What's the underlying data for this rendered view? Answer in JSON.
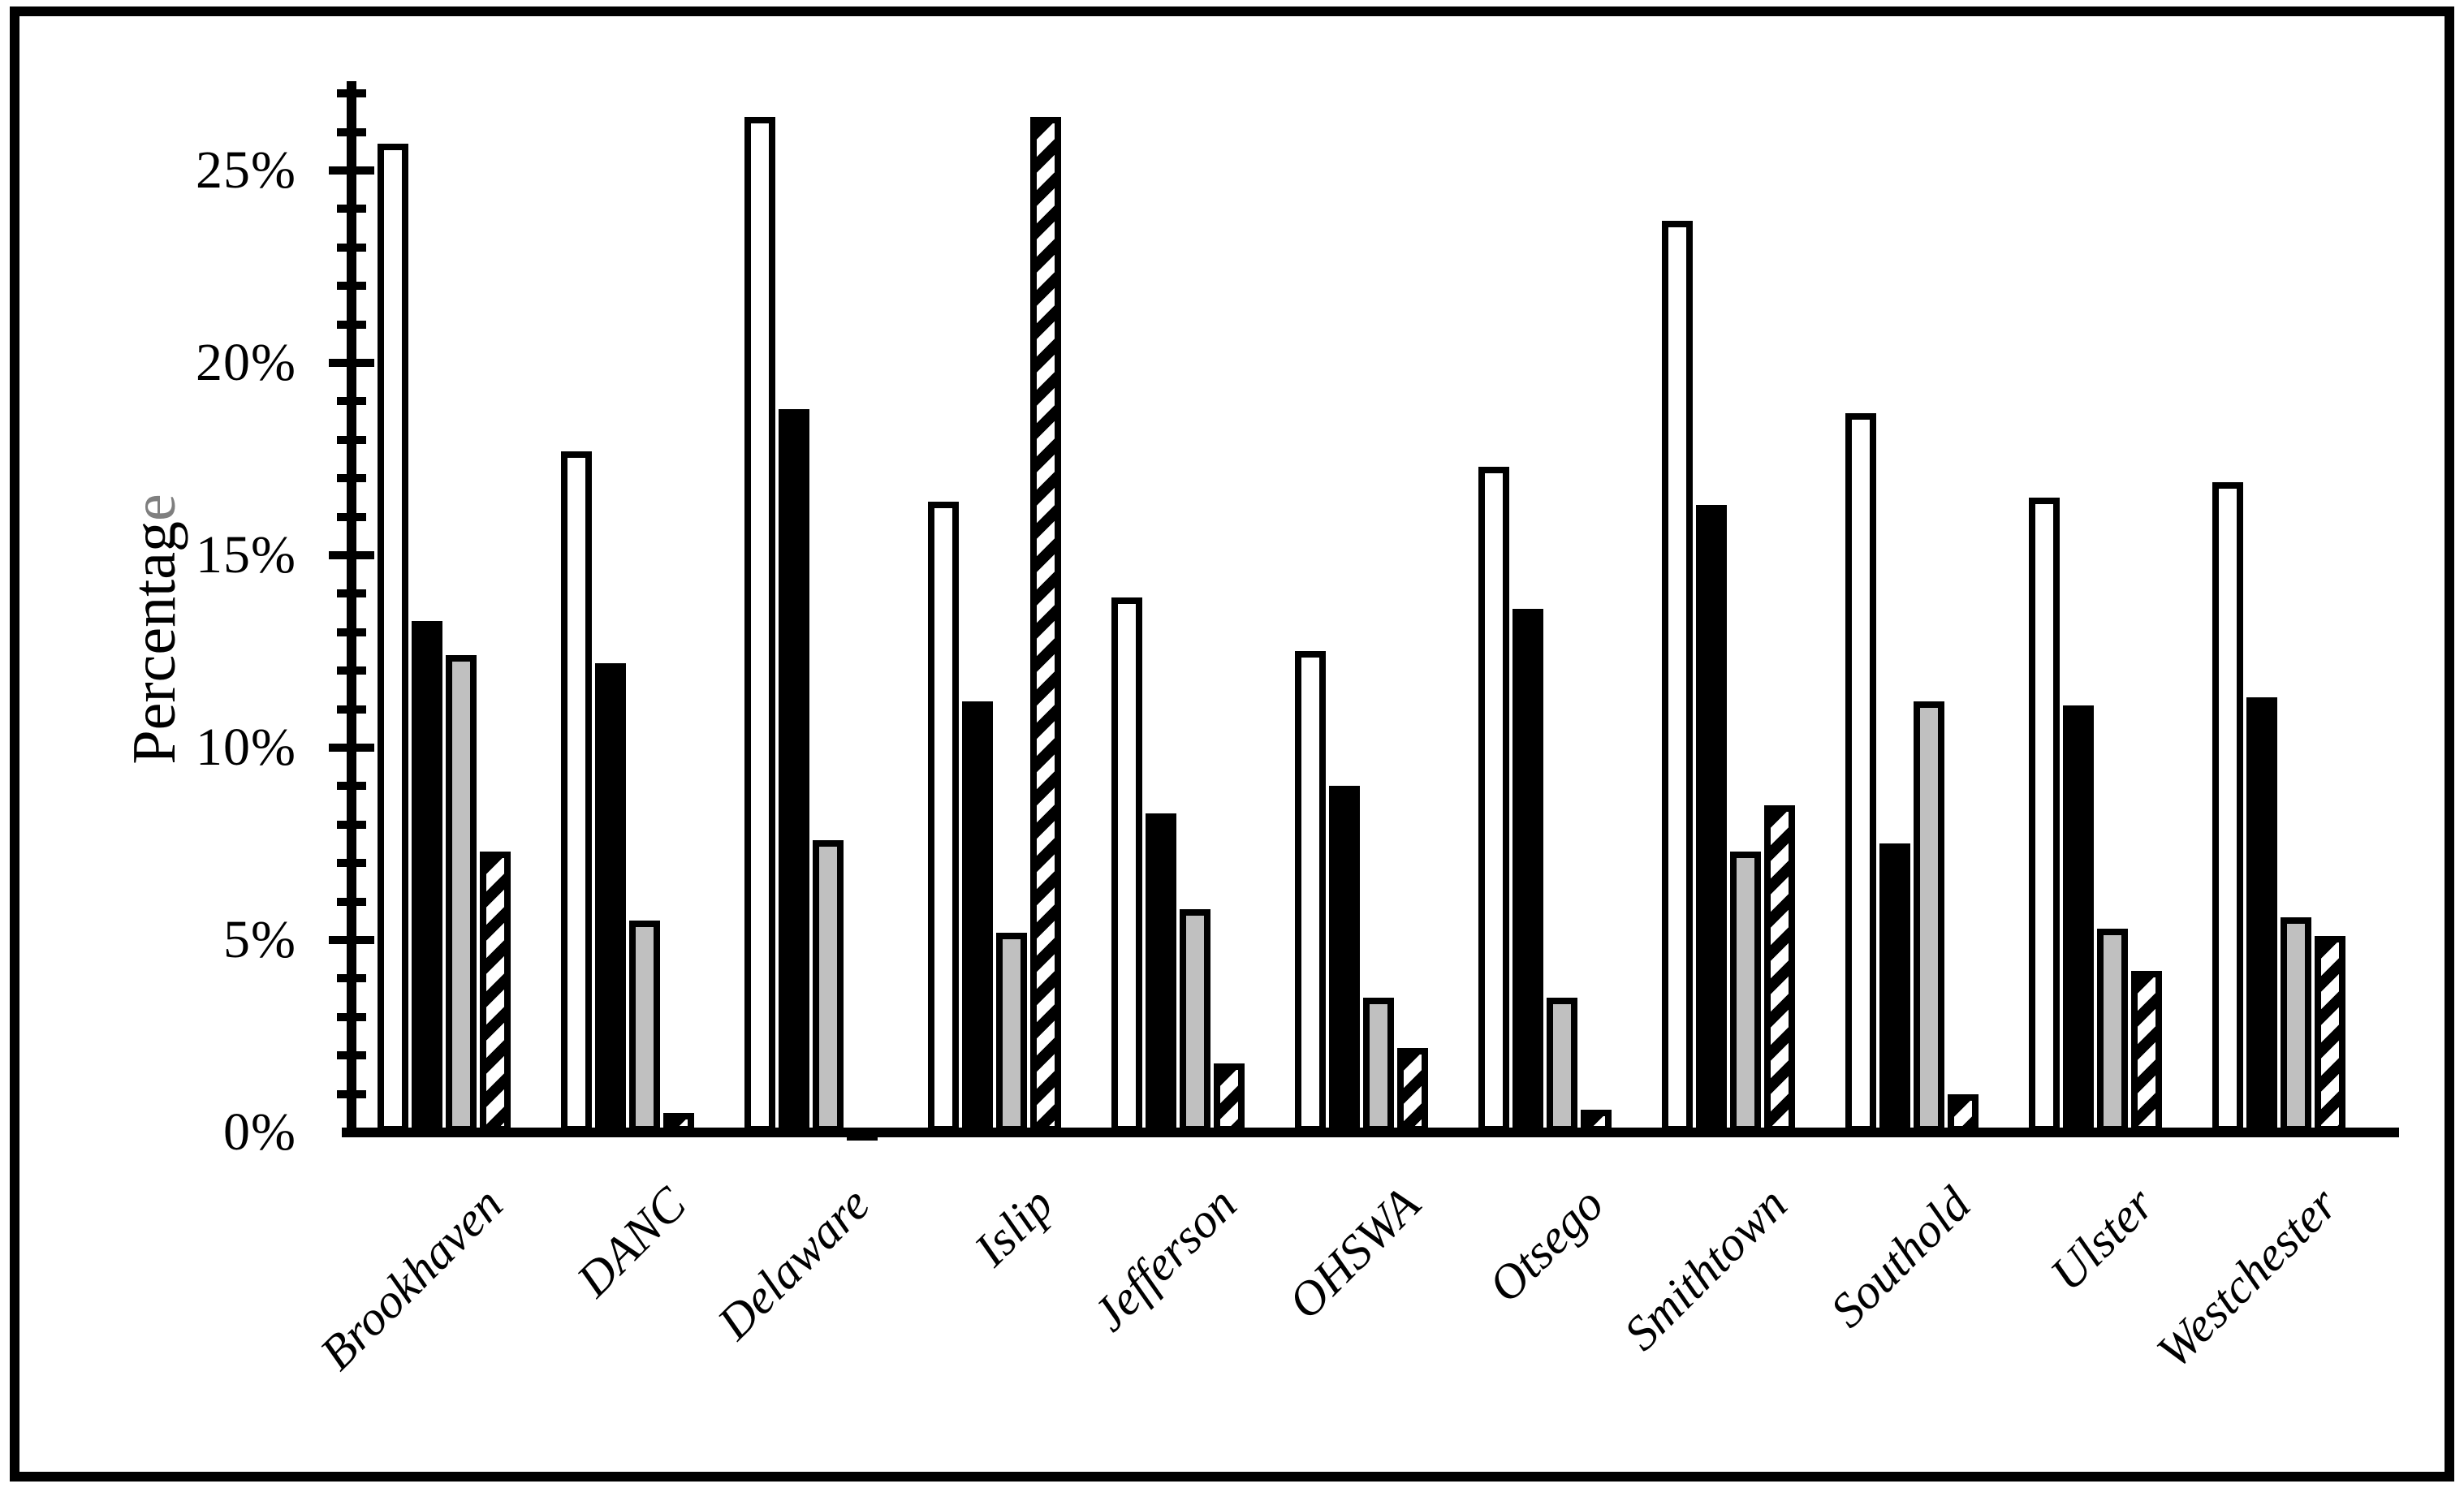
{
  "figure": {
    "y_axis": {
      "title": "Percentage",
      "tick_labels": [
        "25%",
        "20%",
        "15%",
        "10%",
        "5%",
        "0%"
      ],
      "major_tick_values": [
        25,
        20,
        15,
        10,
        5,
        0
      ],
      "minor_tick_step_percent": 1,
      "axis_max_percent": 27
    },
    "chart_data": {
      "type": "bar",
      "title": "",
      "xlabel": "",
      "ylabel": "Percentage",
      "ylim": [
        0,
        27
      ],
      "grid": false,
      "legend_position": "none",
      "categories": [
        "Brookhaven",
        "DANC",
        "Delaware",
        "Islip",
        "Jefferson",
        "OHSWA",
        "Otsego",
        "Smithtown",
        "Southold",
        "Ulster",
        "Westchester"
      ],
      "series": [
        {
          "name": "white-solid-fill",
          "fill": "#ffffff",
          "values": [
            25.7,
            17.7,
            26.4,
            16.4,
            13.9,
            12.5,
            17.3,
            23.7,
            18.7,
            16.5,
            16.9
          ]
        },
        {
          "name": "black-solid-fill",
          "fill": "#000000",
          "values": [
            13.3,
            12.2,
            18.8,
            11.2,
            8.3,
            9.0,
            13.6,
            16.3,
            7.5,
            11.1,
            11.3
          ]
        },
        {
          "name": "gray-solid-fill",
          "fill": "#c0c0c0",
          "values": [
            12.4,
            5.5,
            7.6,
            5.2,
            5.8,
            3.5,
            3.5,
            7.3,
            11.2,
            5.3,
            5.6
          ]
        },
        {
          "name": "diagonal-hatched-fill",
          "fill": "hatch",
          "values": [
            7.3,
            0.5,
            0.1,
            26.4,
            1.8,
            2.2,
            0.6,
            8.5,
            1.0,
            4.2,
            5.1
          ]
        }
      ],
      "colors": {
        "bar_border": "#000000",
        "gray_fill": "#c0c0c0",
        "axis": "#000000",
        "title_last_letter_gray": "#7f7f7f"
      }
    }
  }
}
